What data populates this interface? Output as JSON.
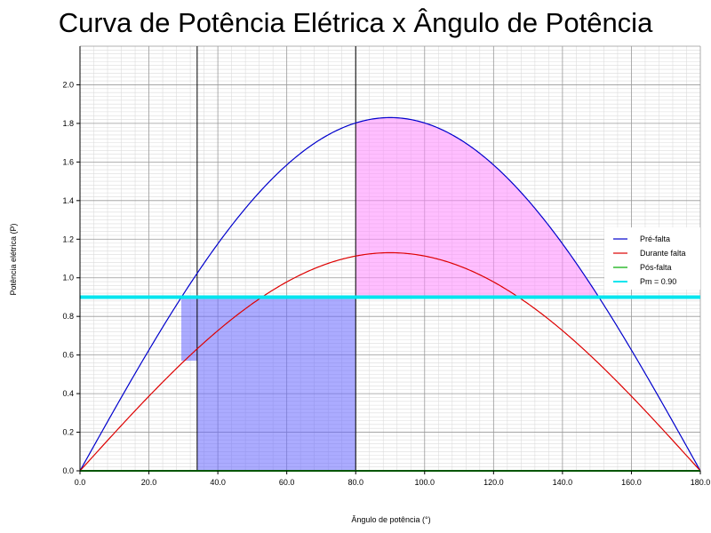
{
  "chart_data": {
    "type": "line",
    "title": "Curva de Potência Elétrica x Ângulo de Potência",
    "xlabel": "Ângulo de potência (°)",
    "ylabel": "Potência elétrica (P)",
    "xlim": [
      0,
      180
    ],
    "ylim": [
      0,
      2.2
    ],
    "xticks": [
      "0.0",
      "20.0",
      "40.0",
      "60.0",
      "80.0",
      "100.0",
      "120.0",
      "140.0",
      "160.0",
      "180.0"
    ],
    "yticks": [
      "0.0",
      "0.2",
      "0.4",
      "0.6",
      "0.8",
      "1.0",
      "1.2",
      "1.4",
      "1.6",
      "1.8",
      "2.0"
    ],
    "grid": true,
    "legend_position": "right",
    "series": [
      {
        "name": "Pré-falta",
        "color": "#0000cc",
        "pmax": 1.83
      },
      {
        "name": "Durante falta",
        "color": "#dd0000",
        "pmax": 1.13
      },
      {
        "name": "Pós-falta",
        "color": "#00aa00",
        "pmax": 0.0
      },
      {
        "name": "Pm = 0.90",
        "color": "#00e5ee",
        "constant": 0.9
      }
    ],
    "vertical_lines": [
      34,
      80
    ],
    "areas": [
      {
        "label": "acceleration",
        "color": "#6666ff",
        "x_from": 29.4,
        "x_to": 80,
        "bound": "Pm"
      },
      {
        "label": "deceleration",
        "color": "#ff88ff",
        "x_from": 80,
        "x_to": 150.6,
        "bound": "Pré-falta"
      }
    ]
  }
}
